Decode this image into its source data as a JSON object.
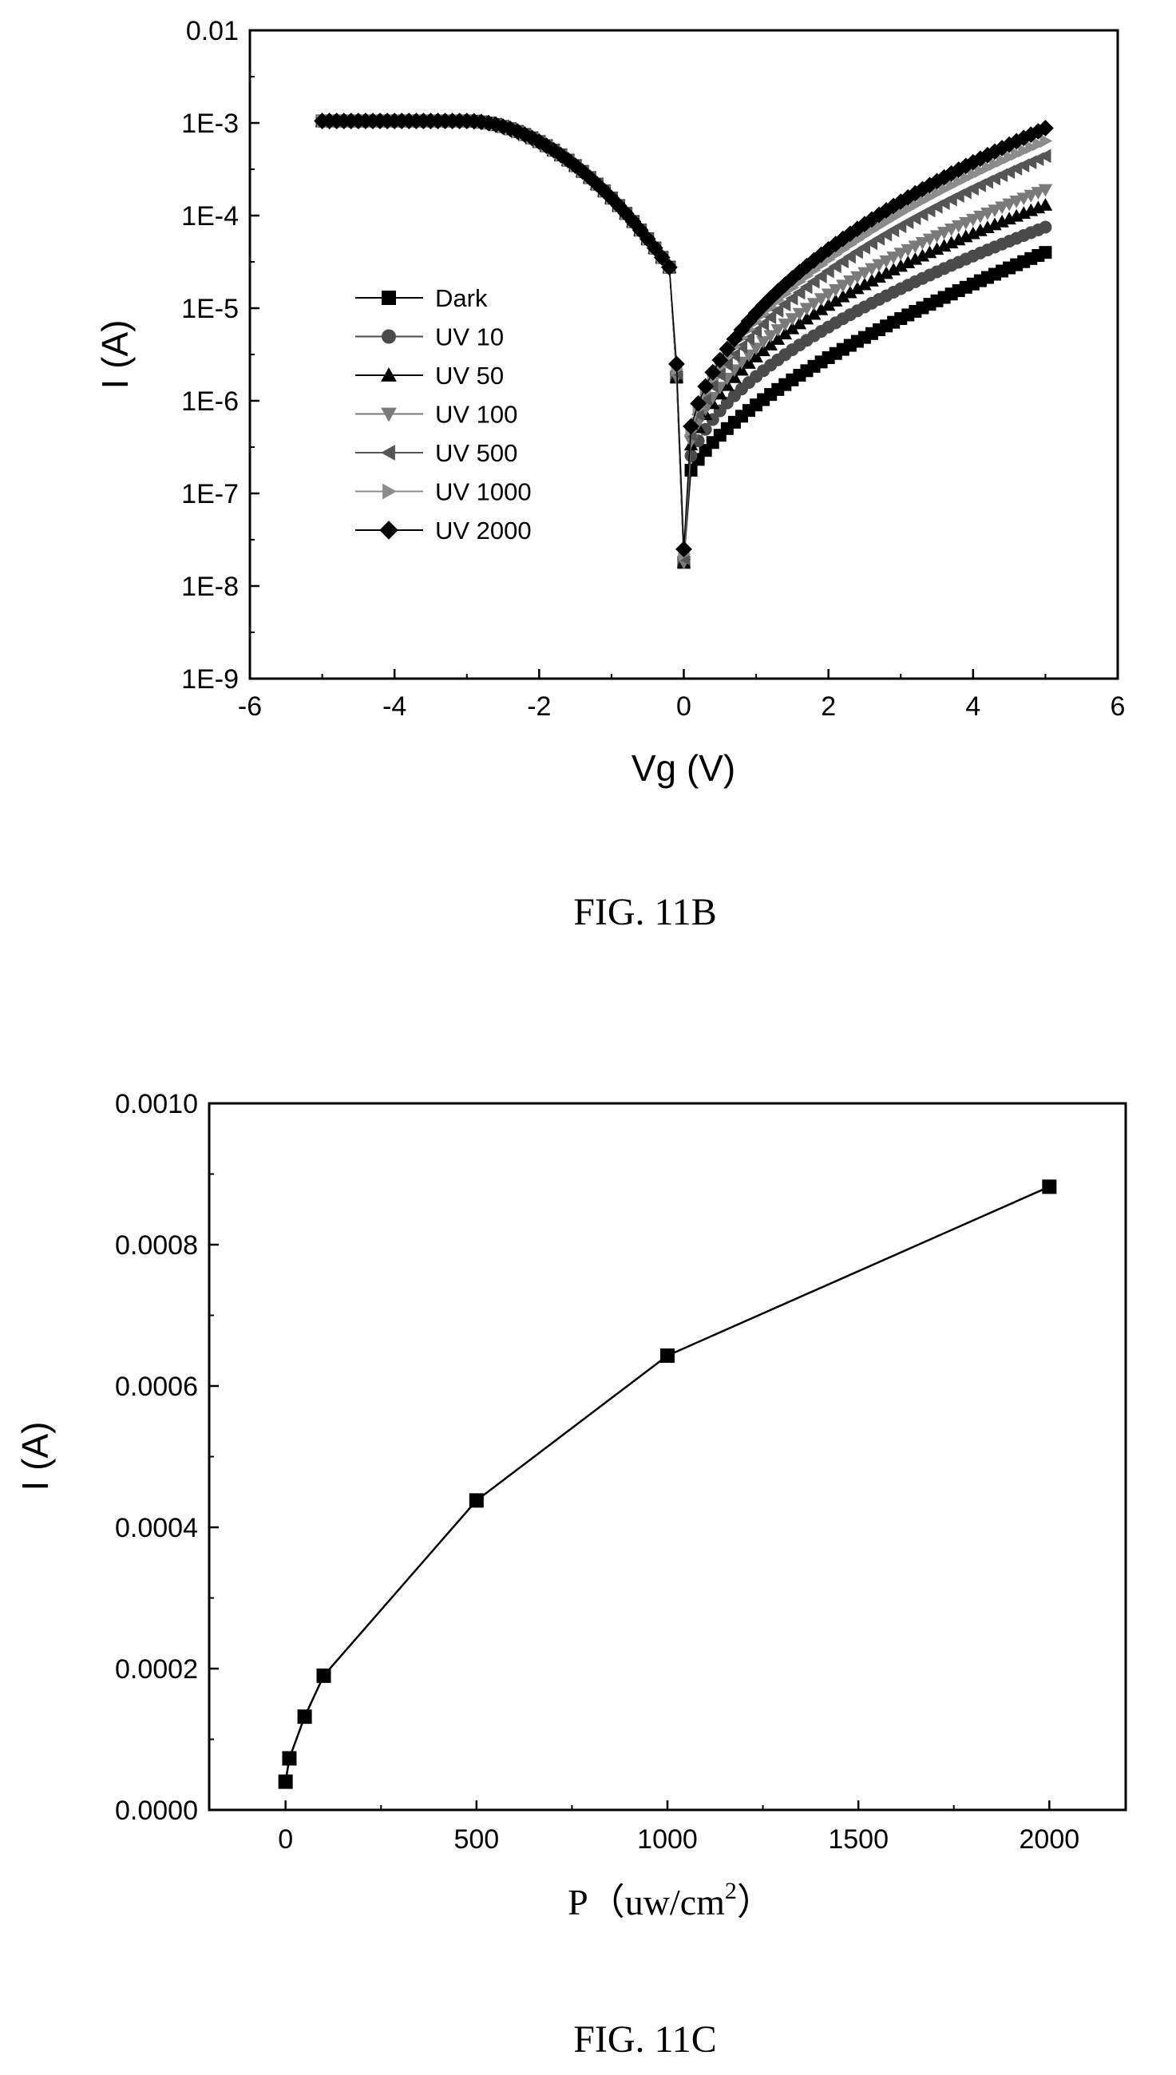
{
  "chart_data": [
    {
      "type": "line",
      "caption": "FIG. 11B",
      "xlabel": "Vg (V)",
      "ylabel": "I (A)",
      "xlim": [
        -6,
        6
      ],
      "ylim": [
        1e-09,
        0.01
      ],
      "yscale": "log",
      "xticks": [
        -6,
        -4,
        -2,
        0,
        2,
        4,
        6
      ],
      "xtick_labels": [
        "-6",
        "-4",
        "-2",
        "0",
        "2",
        "4",
        "6"
      ],
      "yticks": [
        0.01,
        0.001,
        0.0001,
        1e-05,
        1e-06,
        1e-07,
        1e-08,
        1e-09
      ],
      "ytick_labels": [
        "0.01",
        "1E-3",
        "1E-4",
        "1E-5",
        "1E-6",
        "1E-7",
        "1E-8",
        "1E-9"
      ],
      "legend_position": "center-left",
      "series": [
        {
          "name": "Dark",
          "marker": "square",
          "color": "#000000",
          "I_min": 1.8e-08,
          "I_at_plus5": 4e-05,
          "onset_V": 0.3
        },
        {
          "name": "UV 10",
          "marker": "circle",
          "color": "#4a4a4a",
          "I_min": 1.8e-08,
          "I_at_plus5": 7.5e-05,
          "onset_V": 0.6
        },
        {
          "name": "UV 50",
          "marker": "triangle-up",
          "color": "#000000",
          "I_min": 1.8e-08,
          "I_at_plus5": 0.00013,
          "onset_V": 0.9
        },
        {
          "name": "UV 100",
          "marker": "triangle-down",
          "color": "#7a7a7a",
          "I_min": 1.8e-08,
          "I_at_plus5": 0.00019,
          "onset_V": 0.95
        },
        {
          "name": "UV 500",
          "marker": "triangle-left",
          "color": "#555555",
          "I_min": 2e-08,
          "I_at_plus5": 0.00044,
          "onset_V": 1.0
        },
        {
          "name": "UV 1000",
          "marker": "triangle-right",
          "color": "#8c8c8c",
          "I_min": 2.2e-08,
          "I_at_plus5": 0.00064,
          "onset_V": 1.1
        },
        {
          "name": "UV 2000",
          "marker": "diamond",
          "color": "#000000",
          "I_min": 2.5e-08,
          "I_at_plus5": 0.00088,
          "onset_V": 1.2
        }
      ]
    },
    {
      "type": "line",
      "caption": "FIG. 11C",
      "xlabel": "P（uw/cm",
      "xlabel_sup": "2",
      "xlabel_end": "）",
      "ylabel": "I (A)",
      "xlim": [
        -200,
        2200
      ],
      "ylim": [
        0,
        0.001
      ],
      "xticks": [
        0,
        500,
        1000,
        1500,
        2000
      ],
      "xtick_labels": [
        "0",
        "500",
        "1000",
        "1500",
        "2000"
      ],
      "yticks": [
        0,
        0.0002,
        0.0004,
        0.0006,
        0.0008,
        0.001
      ],
      "ytick_labels": [
        "0.0000",
        "0.0002",
        "0.0004",
        "0.0006",
        "0.0008",
        "0.0010"
      ],
      "marker": "square",
      "x": [
        0,
        10,
        50,
        100,
        500,
        1000,
        2000
      ],
      "y": [
        4e-05,
        7.3e-05,
        0.000132,
        0.00019,
        0.000438,
        0.000643,
        0.000882
      ]
    }
  ]
}
